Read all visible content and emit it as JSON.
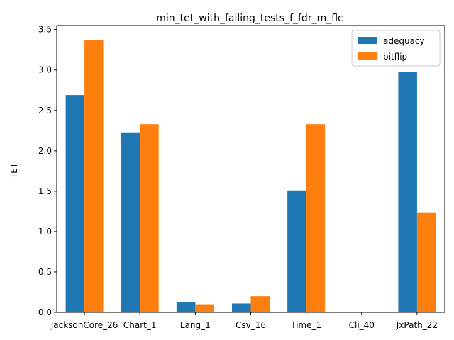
{
  "chart_data": {
    "type": "bar",
    "title": "min_tet_with_failing_tests_f_fdr_m_flc",
    "xlabel": "",
    "ylabel": "TET",
    "categories": [
      "JacksonCore_26",
      "Chart_1",
      "Lang_1",
      "Csv_16",
      "Time_1",
      "Cli_40",
      "JxPath_22"
    ],
    "series": [
      {
        "name": "adequacy",
        "color": "#1f77b4",
        "values": [
          2.69,
          2.22,
          0.13,
          0.11,
          1.51,
          0.0,
          2.98
        ]
      },
      {
        "name": "bitflip",
        "color": "#ff7f0e",
        "values": [
          3.37,
          2.33,
          0.1,
          0.2,
          2.33,
          0.0,
          1.23
        ]
      }
    ],
    "ylim": [
      0,
      3.55
    ],
    "yticks": [
      "0.0",
      "0.5",
      "1.0",
      "1.5",
      "2.0",
      "2.5",
      "3.0",
      "3.5"
    ],
    "legend": "top-right",
    "grid": false
  }
}
